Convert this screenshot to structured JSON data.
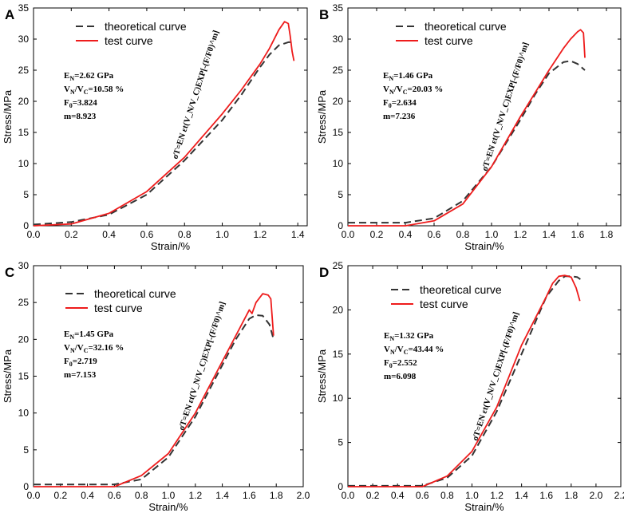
{
  "chart_data": [
    {
      "type": "line",
      "panel_label": "A",
      "xlabel": "Strain/%",
      "ylabel": "Stress/MPa",
      "xlim": [
        0,
        1.45
      ],
      "ylim": [
        0,
        35
      ],
      "xticks": [
        0.0,
        0.2,
        0.4,
        0.6,
        0.8,
        1.0,
        1.2,
        1.4
      ],
      "xtick_labels": [
        "0.0",
        "0.2",
        "0.4",
        "0.6",
        "0.8",
        "1.0",
        "1.2",
        "1.4"
      ],
      "yticks": [
        0,
        5,
        10,
        15,
        20,
        25,
        30,
        35
      ],
      "ytick_labels": [
        "0",
        "5",
        "10",
        "15",
        "20",
        "25",
        "30",
        "35"
      ],
      "legend": {
        "placement": "top-center",
        "entries": [
          "theoretical curve",
          "test curve"
        ]
      },
      "params": [
        "E_N=2.62 GPa",
        "V_N/V_C=10.58 %",
        "F_0=3.824",
        "m=8.923"
      ],
      "params_display": [
        {
          "main": "E",
          "sub": "N",
          "rest": "=2.62 GPa"
        },
        {
          "main": "V",
          "sub": "N",
          "mid": "/V",
          "sub2": "C",
          "rest": "=10.58 %"
        },
        {
          "main": "F",
          "sub": "0",
          "rest": "=3.824"
        },
        {
          "main": "m",
          "sub": "",
          "rest": "=8.923"
        }
      ],
      "formula": "σ_T=E_N ε_t(V_N/V_C)EXP[-(F/F_0)^m]",
      "series": [
        {
          "name": "theoretical curve",
          "style": "dashed",
          "x": [
            0,
            0.2,
            0.4,
            0.6,
            0.8,
            1.0,
            1.1,
            1.2,
            1.25,
            1.3,
            1.35,
            1.37
          ],
          "y": [
            0.2,
            0.6,
            1.8,
            5,
            10.5,
            17,
            21,
            25.5,
            27.5,
            29,
            29.5,
            29.5
          ]
        },
        {
          "name": "test curve",
          "style": "solid",
          "x": [
            0,
            0.2,
            0.4,
            0.6,
            0.8,
            1.0,
            1.1,
            1.2,
            1.25,
            1.3,
            1.33,
            1.35,
            1.36,
            1.37,
            1.38
          ],
          "y": [
            0,
            0.3,
            2,
            5.5,
            11,
            18,
            21.8,
            26,
            28.5,
            31.5,
            32.8,
            32.5,
            30.5,
            28,
            26.5
          ]
        }
      ]
    },
    {
      "type": "line",
      "panel_label": "B",
      "xlabel": "Strain/%",
      "ylabel": "Stress/MPa",
      "xlim": [
        0,
        1.9
      ],
      "ylim": [
        0,
        35
      ],
      "xticks": [
        0.0,
        0.2,
        0.4,
        0.6,
        0.8,
        1.0,
        1.2,
        1.4,
        1.6,
        1.8
      ],
      "xtick_labels": [
        "0.0",
        "0.2",
        "0.4",
        "0.6",
        "0.8",
        "1.0",
        "1.2",
        "1.4",
        "1.6",
        "1.8"
      ],
      "yticks": [
        0,
        5,
        10,
        15,
        20,
        25,
        30,
        35
      ],
      "ytick_labels": [
        "0",
        "5",
        "10",
        "15",
        "20",
        "25",
        "30",
        "35"
      ],
      "legend": {
        "placement": "top-center",
        "entries": [
          "theoretical curve",
          "test curve"
        ]
      },
      "params": [
        "E_N=1.46 GPa",
        "V_N/V_C=20.03 %",
        "F_0=2.634",
        "m=7.236"
      ],
      "params_display": [
        {
          "main": "E",
          "sub": "N",
          "rest": "=1.46 GPa"
        },
        {
          "main": "V",
          "sub": "N",
          "mid": "/V",
          "sub2": "C",
          "rest": "=20.03 %"
        },
        {
          "main": "F",
          "sub": "0",
          "rest": "=2.634"
        },
        {
          "main": "m",
          "sub": "",
          "rest": "=7.236"
        }
      ],
      "formula": "σ_T=E_N ε_t(V_N/V_C)EXP[-(F/F_0)^m]",
      "series": [
        {
          "name": "theoretical curve",
          "style": "dashed",
          "x": [
            0,
            0.4,
            0.6,
            0.8,
            1.0,
            1.2,
            1.3,
            1.4,
            1.5,
            1.55,
            1.6,
            1.65
          ],
          "y": [
            0.5,
            0.5,
            1.2,
            4,
            9.5,
            17,
            21,
            24.5,
            26.3,
            26.5,
            26,
            25
          ]
        },
        {
          "name": "test curve",
          "style": "solid",
          "x": [
            0,
            0.4,
            0.6,
            0.8,
            1.0,
            1.2,
            1.4,
            1.5,
            1.55,
            1.6,
            1.62,
            1.64,
            1.65
          ],
          "y": [
            0,
            0,
            0.8,
            3.5,
            9.5,
            17.5,
            25,
            28.5,
            30,
            31.2,
            31.5,
            31,
            27
          ]
        }
      ]
    },
    {
      "type": "line",
      "panel_label": "C",
      "xlabel": "Strain/%",
      "ylabel": "Stress/MPa",
      "xlim": [
        0,
        2.0
      ],
      "ylim": [
        0,
        30
      ],
      "xticks": [
        0.0,
        0.2,
        0.4,
        0.6,
        0.8,
        1.0,
        1.2,
        1.4,
        1.6,
        1.8,
        2.0
      ],
      "xtick_labels": [
        "0.0",
        "0.2",
        "0.4",
        "0.6",
        "0.8",
        "1.0",
        "1.2",
        "1.4",
        "1.6",
        "1.8",
        "2.0"
      ],
      "yticks": [
        0,
        5,
        10,
        15,
        20,
        25,
        30
      ],
      "ytick_labels": [
        "0",
        "5",
        "10",
        "15",
        "20",
        "25",
        "30"
      ],
      "legend": {
        "placement": "top-center",
        "entries": [
          "theoretical curve",
          "test curve"
        ]
      },
      "params": [
        "E_N=1.45 GPa",
        "V_N/V_C=32.16 %",
        "F_0=2.719",
        "m=7.153"
      ],
      "params_display": [
        {
          "main": "E",
          "sub": "N",
          "rest": "=1.45 GPa"
        },
        {
          "main": "V",
          "sub": "N",
          "mid": "/V",
          "sub2": "C",
          "rest": "=32.16 %"
        },
        {
          "main": "F",
          "sub": "0",
          "rest": "=2.719"
        },
        {
          "main": "m",
          "sub": "",
          "rest": "=7.153"
        }
      ],
      "formula": "σ_T=E_N ε_t(V_N/V_C)EXP[-(F/F_0)^m]",
      "series": [
        {
          "name": "theoretical curve",
          "style": "dashed",
          "x": [
            0,
            0.6,
            0.8,
            1.0,
            1.2,
            1.4,
            1.5,
            1.6,
            1.65,
            1.7,
            1.75,
            1.78
          ],
          "y": [
            0.3,
            0.3,
            1,
            4,
            9.5,
            16.5,
            20,
            22.8,
            23.3,
            23.2,
            22,
            20
          ]
        },
        {
          "name": "test curve",
          "style": "solid",
          "x": [
            0,
            0.6,
            0.8,
            1.0,
            1.2,
            1.4,
            1.6,
            1.62,
            1.65,
            1.7,
            1.74,
            1.76,
            1.78
          ],
          "y": [
            0,
            0,
            1.5,
            4.5,
            10,
            17,
            24,
            23.5,
            25,
            26.2,
            26,
            25.5,
            20.5
          ]
        }
      ]
    },
    {
      "type": "line",
      "panel_label": "D",
      "xlabel": "Strain/%",
      "ylabel": "Stress/MPa",
      "xlim": [
        0,
        2.2
      ],
      "ylim": [
        0,
        25
      ],
      "xticks": [
        0.0,
        0.2,
        0.4,
        0.6,
        0.8,
        1.0,
        1.2,
        1.4,
        1.6,
        1.8,
        2.0,
        2.2
      ],
      "xtick_labels": [
        "0.0",
        "0.2",
        "0.4",
        "0.6",
        "0.8",
        "1.0",
        "1.2",
        "1.4",
        "1.6",
        "1.8",
        "2.0",
        "2.2"
      ],
      "yticks": [
        0,
        5,
        10,
        15,
        20,
        25
      ],
      "ytick_labels": [
        "0",
        "5",
        "10",
        "15",
        "20",
        "25"
      ],
      "legend": {
        "placement": "top-center",
        "entries": [
          "theoretical curve",
          "test curve"
        ]
      },
      "params": [
        "E_N=1.32 GPa",
        "V_N/V_C=43.44 %",
        "F_0=2.552",
        "m=6.098"
      ],
      "params_display": [
        {
          "main": "E",
          "sub": "N",
          "rest": "=1.32 GPa"
        },
        {
          "main": "V",
          "sub": "N",
          "mid": "/V",
          "sub2": "C",
          "rest": "=43.44 %"
        },
        {
          "main": "F",
          "sub": "0",
          "rest": "=2.552"
        },
        {
          "main": "m",
          "sub": "",
          "rest": "=6.098"
        }
      ],
      "formula": "σ_T=E_N ε_t(V_N/V_C)EXP[-(F/F_0)^m]",
      "series": [
        {
          "name": "theoretical curve",
          "style": "dashed",
          "x": [
            0,
            0.6,
            0.8,
            1.0,
            1.2,
            1.4,
            1.6,
            1.7,
            1.75,
            1.8,
            1.85,
            1.88
          ],
          "y": [
            0.1,
            0.1,
            1,
            3.5,
            8.5,
            15,
            21.5,
            23.3,
            23.8,
            23.8,
            23.7,
            23.4
          ]
        },
        {
          "name": "test curve",
          "style": "solid",
          "x": [
            0,
            0.6,
            0.8,
            1.0,
            1.2,
            1.4,
            1.6,
            1.65,
            1.7,
            1.75,
            1.8,
            1.84,
            1.87
          ],
          "y": [
            0,
            0,
            1.2,
            4,
            9,
            16,
            21.5,
            23,
            23.8,
            23.9,
            23.7,
            22.5,
            21
          ]
        }
      ]
    }
  ]
}
